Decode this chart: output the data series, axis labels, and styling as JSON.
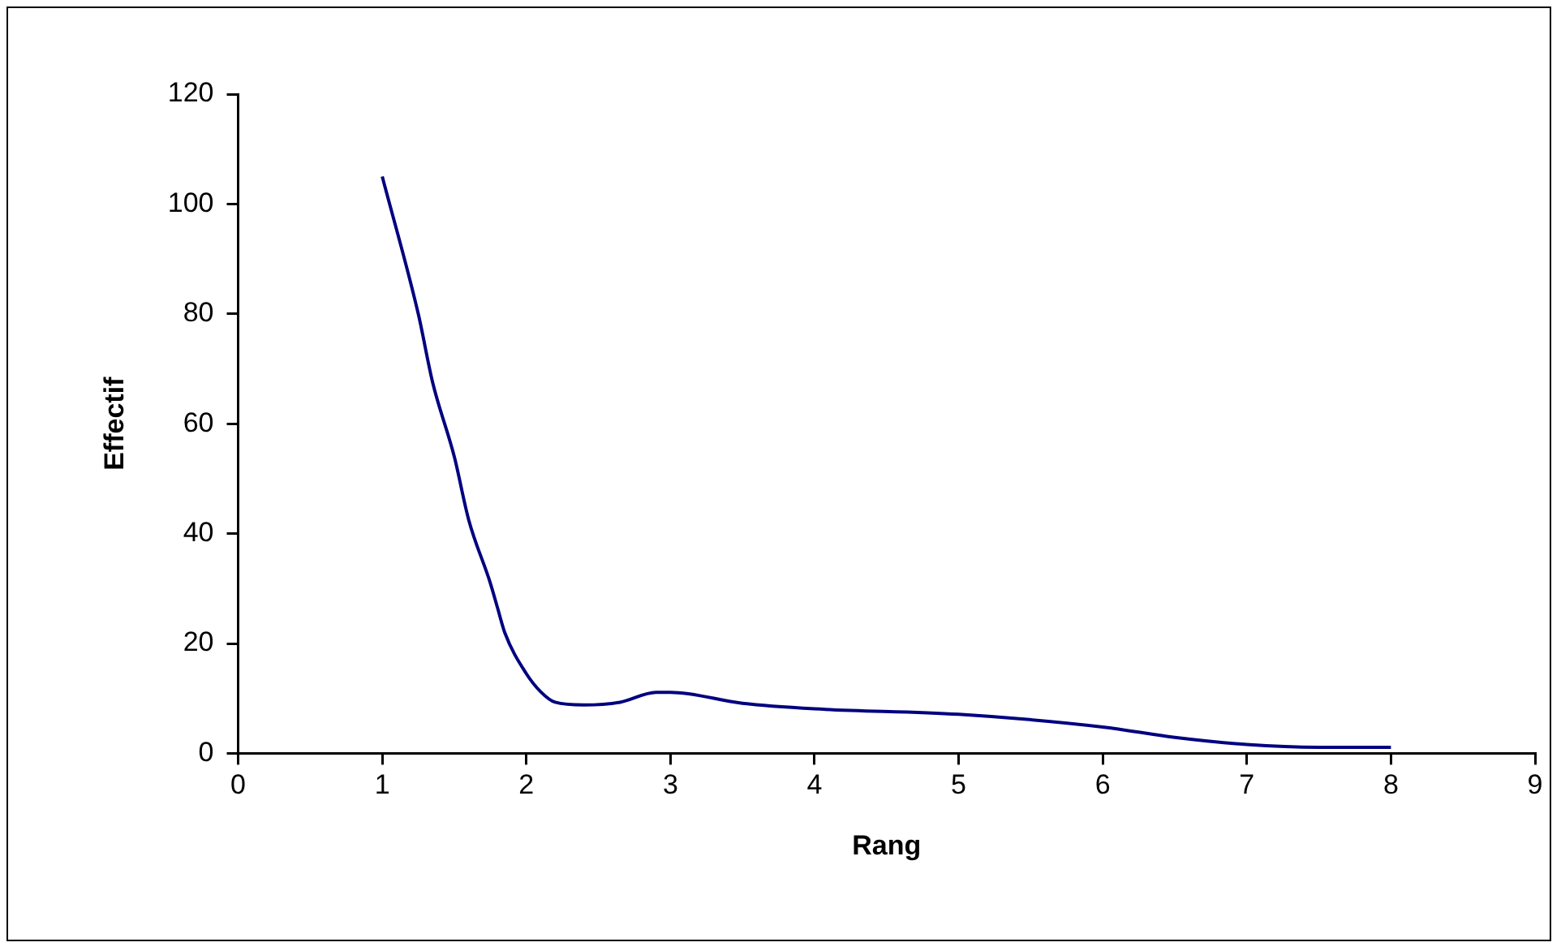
{
  "chart_data": {
    "type": "line",
    "xlabel": "Rang",
    "ylabel": "Effectif",
    "x": [
      1,
      1.25,
      1.35,
      1.5,
      1.6,
      1.75,
      1.8,
      1.85,
      2,
      2.1,
      2.2,
      2.4,
      2.65,
      2.9,
      3,
      3.5,
      4,
      5,
      6,
      6.5,
      7,
      7.5,
      8
    ],
    "series": [
      {
        "color": "#000080",
        "values": [
          105,
          80,
          67.5,
          54,
          42.5,
          31,
          26.5,
          22,
          14.5,
          11.2,
          9.3,
          8.8,
          9.3,
          11.1,
          11.1,
          9.1,
          8.1,
          7.1,
          4.8,
          2.9,
          1.6,
          1.1,
          1.1
        ]
      }
    ],
    "xlim": [
      0,
      9
    ],
    "xticks": [
      0,
      1,
      2,
      3,
      4,
      5,
      6,
      7,
      8,
      9
    ],
    "ylim": [
      0,
      120
    ],
    "yticks": [
      0,
      20,
      40,
      60,
      80,
      100,
      120
    ],
    "legend": false,
    "marker": "none",
    "line_style": "solid"
  }
}
